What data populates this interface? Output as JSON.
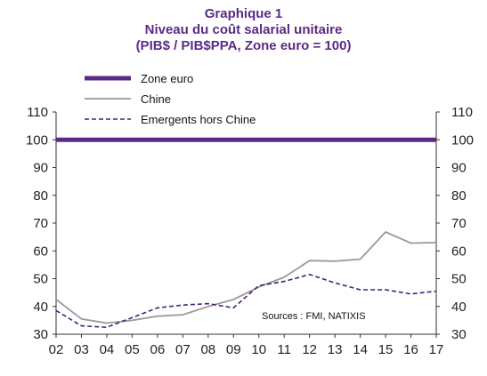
{
  "chart_data": {
    "type": "line",
    "title": "Graphique 1",
    "subtitle": "Niveau du coût salarial unitaire",
    "subtitle2": "(PIB$ / PIB$PPA, Zone euro = 100)",
    "xlabel": "",
    "ylabel": "",
    "categories": [
      "02",
      "03",
      "04",
      "05",
      "06",
      "07",
      "08",
      "09",
      "10",
      "11",
      "12",
      "13",
      "14",
      "15",
      "16",
      "17"
    ],
    "ylim": [
      30,
      110
    ],
    "yticks": [
      30,
      40,
      50,
      60,
      70,
      80,
      90,
      100,
      110
    ],
    "grid": false,
    "legend_position": "top-left",
    "source": "Sources : FMI, NATIXIS",
    "series": [
      {
        "name": "Zone euro",
        "style": "thick-solid",
        "color": "#5b2a86",
        "values": [
          100,
          100,
          100,
          100,
          100,
          100,
          100,
          100,
          100,
          100,
          100,
          100,
          100,
          100,
          100,
          100
        ]
      },
      {
        "name": "Chine",
        "style": "solid",
        "color": "#9a9a9a",
        "values": [
          42.5,
          35.5,
          34,
          35,
          36.5,
          37,
          40,
          42.5,
          47,
          50.5,
          56.5,
          56.3,
          57,
          66.8,
          62.8,
          63
        ]
      },
      {
        "name": "Emergents hors Chine",
        "style": "dashed",
        "color": "#4b1f7a",
        "values": [
          38.5,
          33,
          32.5,
          36,
          39.5,
          40.5,
          41,
          39.5,
          47.5,
          49,
          51.5,
          48.5,
          46,
          46,
          44.5,
          45.5
        ]
      }
    ]
  }
}
